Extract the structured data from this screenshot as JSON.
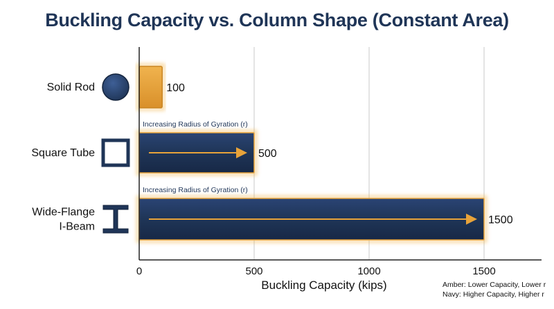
{
  "chart_data": {
    "type": "bar",
    "orientation": "horizontal",
    "title": "Buckling Capacity vs. Column Shape (Constant Area)",
    "xlabel": "Buckling Capacity (kips)",
    "ylabel": "",
    "categories": [
      {
        "lines": [
          "Solid Rod"
        ],
        "icon": "solid-rod-icon"
      },
      {
        "lines": [
          "Square Tube"
        ],
        "icon": "square-tube-icon"
      },
      {
        "lines": [
          "Wide-Flange",
          "I-Beam"
        ],
        "icon": "i-beam-icon"
      }
    ],
    "values": [
      100,
      500,
      1500
    ],
    "value_labels": [
      "100",
      "500",
      "1500"
    ],
    "bar_colors": [
      "#e8a33a",
      "#1f3557",
      "#1f3557"
    ],
    "annotations": [
      {
        "category_index": 1,
        "text": "Increasing Radius of Gyration (r)"
      },
      {
        "category_index": 2,
        "text": "Increasing Radius of Gyration (r)"
      }
    ],
    "xlim": [
      0,
      1750
    ],
    "xticks": [
      0,
      500,
      1000,
      1500
    ],
    "xtick_labels": [
      "0",
      "500",
      "1000",
      "1500"
    ],
    "grid": true,
    "legend": {
      "position": "bottom-right",
      "entries": [
        "Amber: Lower Capacity, Lower r",
        "Navy: Higher Capacity, Higher r"
      ]
    }
  },
  "colors": {
    "amber": "#e8a33a",
    "navy": "#1f3557",
    "title": "#1f3557",
    "grid": "#c9c9c9",
    "axis": "#222222"
  }
}
